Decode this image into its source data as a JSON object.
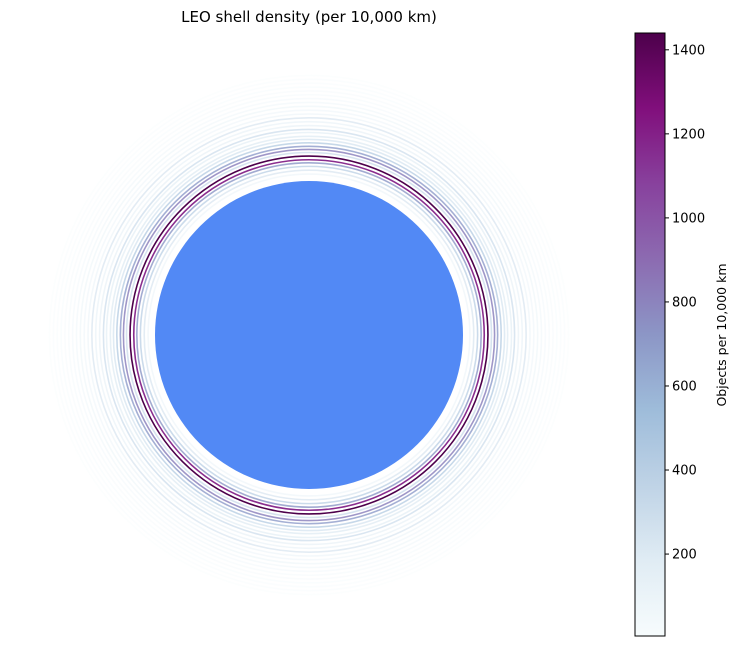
{
  "chart_data": {
    "type": "other",
    "title": "LEO shell density (per 10,000 km)",
    "colorbar": {
      "label": "Objects per 10,000 km",
      "range": [
        5,
        1440
      ],
      "ticks": [
        200,
        400,
        600,
        800,
        1000,
        1200,
        1400
      ],
      "colormap": "BuPu",
      "stops": [
        "#f7fcfd",
        "#e0ecf4",
        "#bfd3e6",
        "#9ebcda",
        "#8c96c6",
        "#8c6bb1",
        "#88419d",
        "#810f7c",
        "#4d004b"
      ]
    },
    "earth_color": "#5289f5",
    "shells": [
      {
        "radius_ratio": 1.045,
        "value": 120
      },
      {
        "radius_ratio": 1.07,
        "value": 260
      },
      {
        "radius_ratio": 1.095,
        "value": 420
      },
      {
        "radius_ratio": 1.118,
        "value": 720
      },
      {
        "radius_ratio": 1.138,
        "value": 1200
      },
      {
        "radius_ratio": 1.162,
        "value": 1440
      },
      {
        "radius_ratio": 1.185,
        "value": 350
      },
      {
        "radius_ratio": 1.205,
        "value": 800
      },
      {
        "radius_ratio": 1.225,
        "value": 700
      },
      {
        "radius_ratio": 1.248,
        "value": 450
      },
      {
        "radius_ratio": 1.27,
        "value": 280
      },
      {
        "radius_ratio": 1.29,
        "value": 230
      },
      {
        "radius_ratio": 1.315,
        "value": 200
      },
      {
        "radius_ratio": 1.335,
        "value": 320
      },
      {
        "radius_ratio": 1.36,
        "value": 170
      },
      {
        "radius_ratio": 1.385,
        "value": 150
      },
      {
        "radius_ratio": 1.41,
        "value": 260
      },
      {
        "radius_ratio": 1.435,
        "value": 120
      },
      {
        "radius_ratio": 1.46,
        "value": 90
      },
      {
        "radius_ratio": 1.485,
        "value": 110
      },
      {
        "radius_ratio": 1.51,
        "value": 80
      },
      {
        "radius_ratio": 1.535,
        "value": 60
      },
      {
        "radius_ratio": 1.56,
        "value": 45
      },
      {
        "radius_ratio": 1.585,
        "value": 35
      },
      {
        "radius_ratio": 1.61,
        "value": 25
      },
      {
        "radius_ratio": 1.635,
        "value": 18
      },
      {
        "radius_ratio": 1.66,
        "value": 12
      },
      {
        "radius_ratio": 1.685,
        "value": 8
      }
    ]
  }
}
